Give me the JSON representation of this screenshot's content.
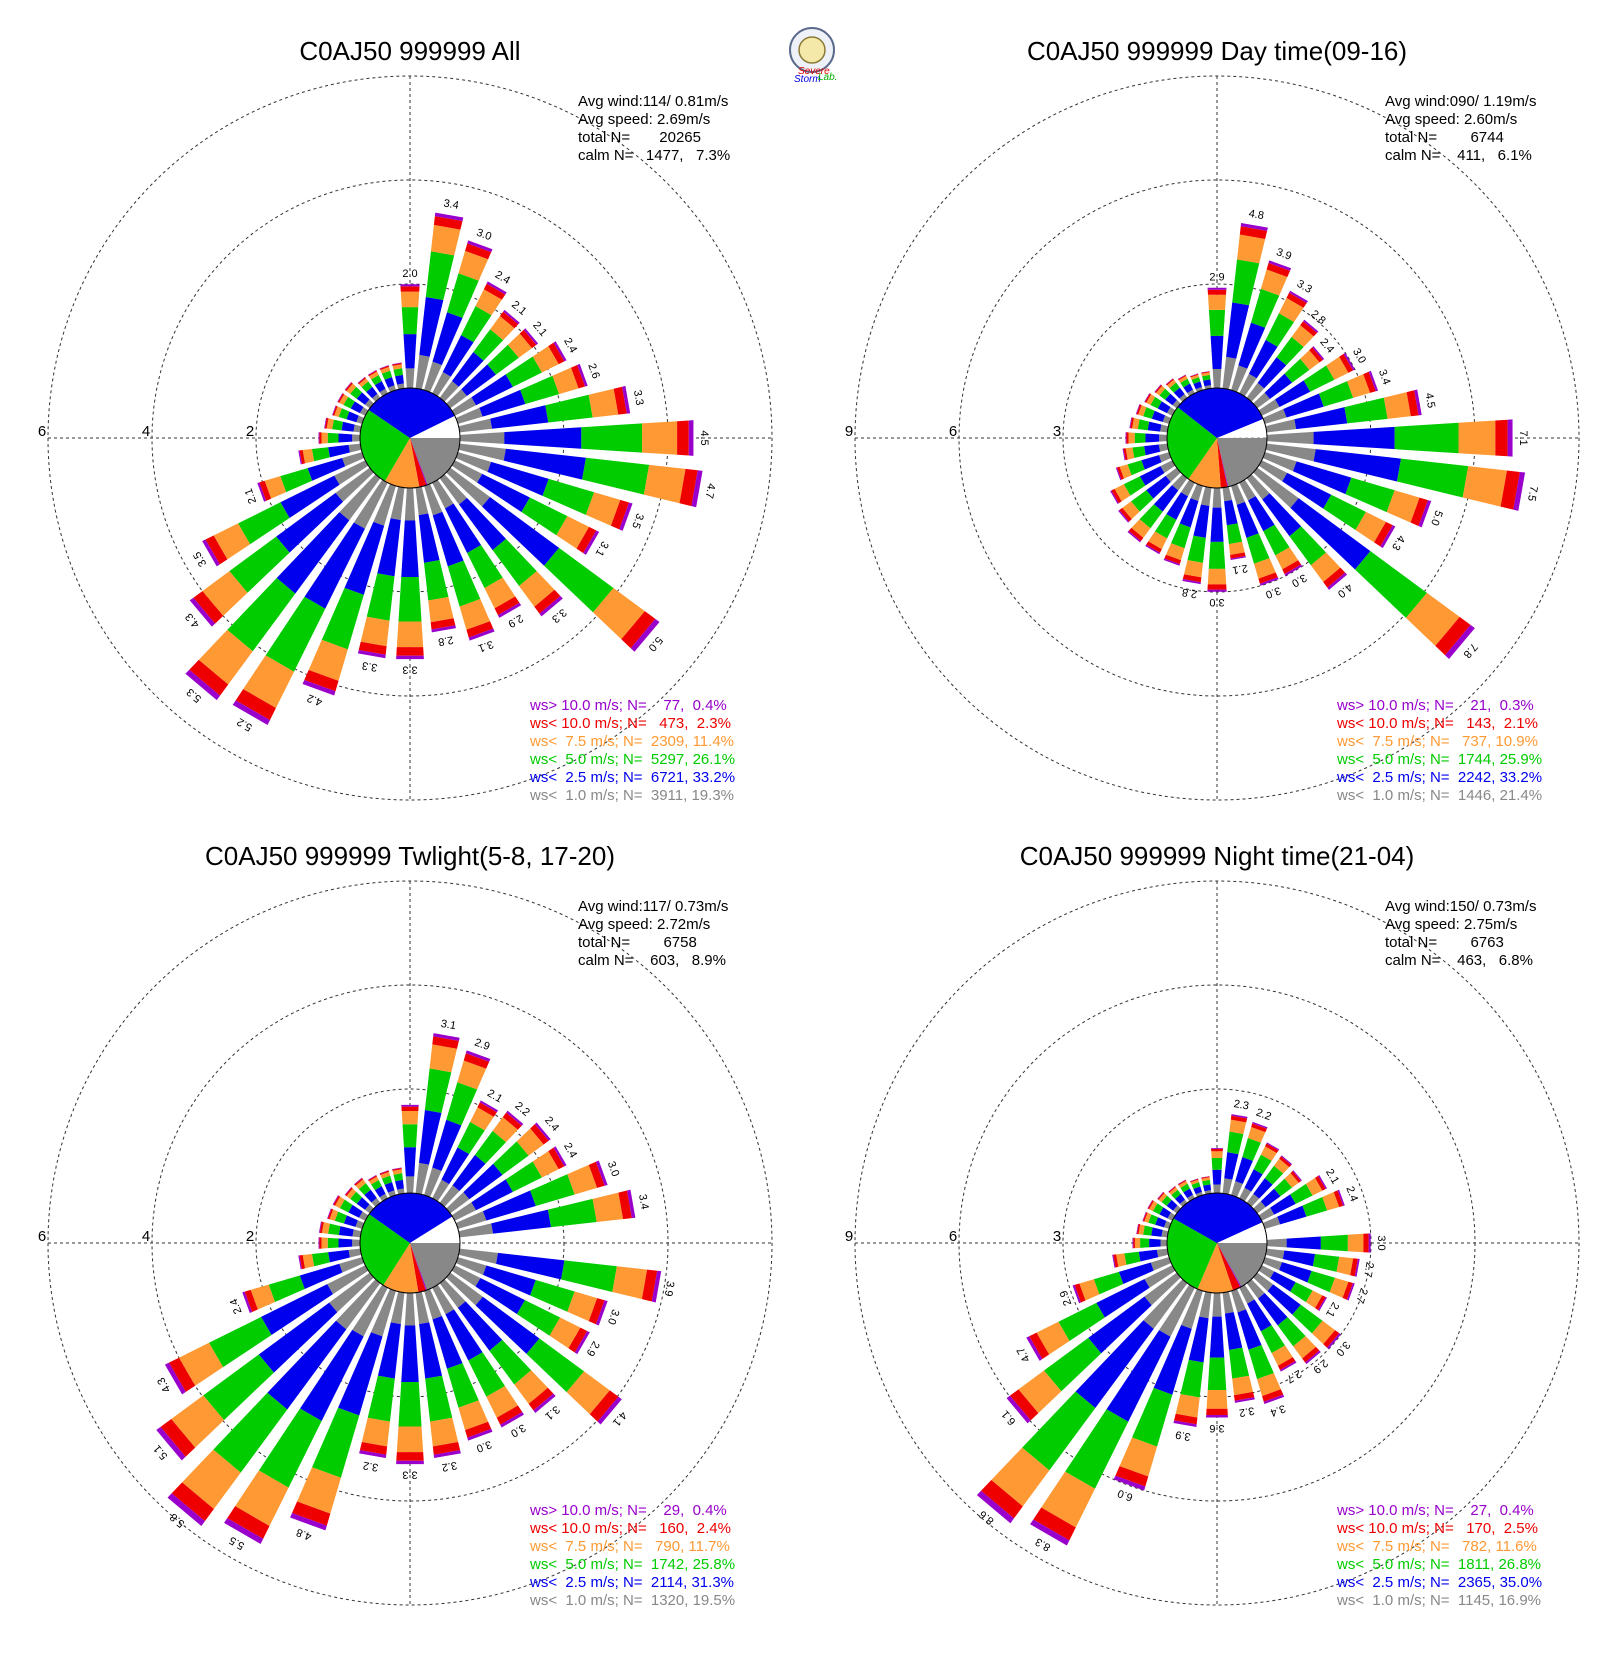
{
  "logo": {
    "words": [
      "Severe",
      "Storm",
      "Lab."
    ],
    "colors": [
      "#e00000",
      "#0000e0",
      "#00b000"
    ]
  },
  "classes": [
    {
      "key": "calm",
      "color": "#888888"
    },
    {
      "key": "c1",
      "color": "#0000ee"
    },
    {
      "key": "c2",
      "color": "#00cc00"
    },
    {
      "key": "c3",
      "color": "#ff9933"
    },
    {
      "key": "c4",
      "color": "#ee0000"
    },
    {
      "key": "c5",
      "color": "#9900cc"
    }
  ],
  "chart_data": [
    {
      "type": "windrose",
      "title": "C0AJ50 999999 All",
      "stats": [
        "Avg wind:114/ 0.81m/s",
        "Avg speed: 2.69m/s",
        "total N=       20265",
        "calm N=   1477,   7.3%"
      ],
      "ring_labels": [
        "2",
        "4",
        "6"
      ],
      "rmax": 6,
      "legend": [
        {
          "text": "ws> 10.0 m/s; N=    77,  0.4%",
          "color": "#9900cc"
        },
        {
          "text": "ws< 10.0 m/s; N=   473,  2.3%",
          "color": "#ee0000"
        },
        {
          "text": "ws<  7.5 m/s; N=  2309, 11.4%",
          "color": "#ff9933"
        },
        {
          "text": "ws<  5.0 m/s; N=  5297, 26.1%",
          "color": "#00cc00"
        },
        {
          "text": "ws<  2.5 m/s; N=  6721, 33.2%",
          "color": "#0000ee"
        },
        {
          "text": "ws<  1.0 m/s; N=  3911, 19.3%",
          "color": "#888888"
        }
      ],
      "pie": [
        {
          "pct": 19.3,
          "color": "#888888"
        },
        {
          "pct": 0.4,
          "color": "#9900cc"
        },
        {
          "pct": 2.3,
          "color": "#ee0000"
        },
        {
          "pct": 11.4,
          "color": "#ff9933"
        },
        {
          "pct": 26.1,
          "color": "#00cc00"
        },
        {
          "pct": 33.2,
          "color": "#0000ee"
        },
        {
          "pct": 7.3,
          "color": "#ffffff"
        }
      ],
      "sectors": [
        {
          "dir": 0,
          "total": 2.0,
          "label": "2.0"
        },
        {
          "dir": 10,
          "total": 3.4,
          "label": "3.4"
        },
        {
          "dir": 20,
          "total": 3.0,
          "label": "3.0"
        },
        {
          "dir": 30,
          "total": 2.4,
          "label": "2.4"
        },
        {
          "dir": 40,
          "total": 2.1,
          "label": "2.1"
        },
        {
          "dir": 50,
          "total": 2.1,
          "label": "2.1"
        },
        {
          "dir": 60,
          "total": 2.4,
          "label": "2.4"
        },
        {
          "dir": 70,
          "total": 2.6,
          "label": "2.6"
        },
        {
          "dir": 80,
          "total": 3.3,
          "label": "3.3"
        },
        {
          "dir": 90,
          "total": 4.5,
          "label": "4.5"
        },
        {
          "dir": 100,
          "total": 4.7,
          "label": "4.7"
        },
        {
          "dir": 110,
          "total": 3.5,
          "label": "3.5"
        },
        {
          "dir": 120,
          "total": 3.1,
          "label": "3.1"
        },
        {
          "dir": 130,
          "total": 5.0,
          "label": "5.0"
        },
        {
          "dir": 140,
          "total": 3.3,
          "label": "3.3"
        },
        {
          "dir": 150,
          "total": 2.9,
          "label": "2.9"
        },
        {
          "dir": 160,
          "total": 3.1,
          "label": "3.1"
        },
        {
          "dir": 170,
          "total": 2.8,
          "label": "2.8"
        },
        {
          "dir": 180,
          "total": 3.3,
          "label": "3.3"
        },
        {
          "dir": 190,
          "total": 3.3,
          "label": "3.3"
        },
        {
          "dir": 200,
          "total": 4.2,
          "label": "4.2"
        },
        {
          "dir": 210,
          "total": 5.2,
          "label": "5.2"
        },
        {
          "dir": 220,
          "total": 5.3,
          "label": "5.3"
        },
        {
          "dir": 230,
          "total": 4.3,
          "label": "4.3"
        },
        {
          "dir": 240,
          "total": 3.5,
          "label": "3.5"
        },
        {
          "dir": 250,
          "total": 2.1,
          "label": "2.1"
        },
        {
          "dir": 260,
          "total": 1.2,
          "label": ""
        },
        {
          "dir": 270,
          "total": 0.8,
          "label": ""
        },
        {
          "dir": 280,
          "total": 0.7,
          "label": ""
        },
        {
          "dir": 290,
          "total": 0.6,
          "label": ""
        },
        {
          "dir": 300,
          "total": 0.6,
          "label": ""
        },
        {
          "dir": 310,
          "total": 0.6,
          "label": ""
        },
        {
          "dir": 320,
          "total": 0.5,
          "label": ""
        },
        {
          "dir": 330,
          "total": 0.5,
          "label": ""
        },
        {
          "dir": 340,
          "total": 0.5,
          "label": ""
        },
        {
          "dir": 350,
          "total": 0.5,
          "label": ""
        }
      ]
    },
    {
      "type": "windrose",
      "title": "C0AJ50 999999 Day time(09-16)",
      "stats": [
        "Avg wind:090/ 1.19m/s",
        "Avg speed: 2.60m/s",
        "total N=        6744",
        "calm N=    411,   6.1%"
      ],
      "ring_labels": [
        "3",
        "6",
        "9"
      ],
      "rmax": 9,
      "legend": [
        {
          "text": "ws> 10.0 m/s; N=    21,  0.3%",
          "color": "#9900cc"
        },
        {
          "text": "ws< 10.0 m/s; N=   143,  2.1%",
          "color": "#ee0000"
        },
        {
          "text": "ws<  7.5 m/s; N=   737, 10.9%",
          "color": "#ff9933"
        },
        {
          "text": "ws<  5.0 m/s; N=  1744, 25.9%",
          "color": "#00cc00"
        },
        {
          "text": "ws<  2.5 m/s; N=  2242, 33.2%",
          "color": "#0000ee"
        },
        {
          "text": "ws<  1.0 m/s; N=  1446, 21.4%",
          "color": "#888888"
        }
      ],
      "pie": [
        {
          "pct": 21.4,
          "color": "#888888"
        },
        {
          "pct": 0.3,
          "color": "#9900cc"
        },
        {
          "pct": 2.1,
          "color": "#ee0000"
        },
        {
          "pct": 10.9,
          "color": "#ff9933"
        },
        {
          "pct": 25.9,
          "color": "#00cc00"
        },
        {
          "pct": 33.2,
          "color": "#0000ee"
        },
        {
          "pct": 6.1,
          "color": "#ffffff"
        }
      ],
      "sectors": [
        {
          "dir": 0,
          "total": 2.9,
          "label": "2.9"
        },
        {
          "dir": 10,
          "total": 4.8,
          "label": "4.8"
        },
        {
          "dir": 20,
          "total": 3.9,
          "label": "3.9"
        },
        {
          "dir": 30,
          "total": 3.3,
          "label": "3.3"
        },
        {
          "dir": 40,
          "total": 2.8,
          "label": "2.8"
        },
        {
          "dir": 50,
          "total": 2.4,
          "label": "2.4"
        },
        {
          "dir": 60,
          "total": 3.0,
          "label": "3.0"
        },
        {
          "dir": 70,
          "total": 3.4,
          "label": "3.4"
        },
        {
          "dir": 80,
          "total": 4.5,
          "label": "4.5"
        },
        {
          "dir": 90,
          "total": 7.1,
          "label": "7.1"
        },
        {
          "dir": 100,
          "total": 7.5,
          "label": "7.5"
        },
        {
          "dir": 110,
          "total": 5.0,
          "label": "5.0"
        },
        {
          "dir": 120,
          "total": 4.3,
          "label": "4.3"
        },
        {
          "dir": 130,
          "total": 7.8,
          "label": "7.8"
        },
        {
          "dir": 140,
          "total": 4.0,
          "label": "4.0"
        },
        {
          "dir": 150,
          "total": 3.0,
          "label": "3.0"
        },
        {
          "dir": 160,
          "total": 3.0,
          "label": "3.0"
        },
        {
          "dir": 170,
          "total": 2.1,
          "label": "2.1"
        },
        {
          "dir": 180,
          "total": 3.0,
          "label": "3.0"
        },
        {
          "dir": 190,
          "total": 2.8,
          "label": "2.8"
        },
        {
          "dir": 200,
          "total": 2.4,
          "label": ""
        },
        {
          "dir": 210,
          "total": 2.3,
          "label": ""
        },
        {
          "dir": 220,
          "total": 2.3,
          "label": ""
        },
        {
          "dir": 230,
          "total": 2.1,
          "label": ""
        },
        {
          "dir": 240,
          "total": 2.0,
          "label": ""
        },
        {
          "dir": 250,
          "total": 1.6,
          "label": ""
        },
        {
          "dir": 260,
          "total": 1.3,
          "label": ""
        },
        {
          "dir": 270,
          "total": 1.2,
          "label": ""
        },
        {
          "dir": 280,
          "total": 1.1,
          "label": ""
        },
        {
          "dir": 290,
          "total": 1.0,
          "label": ""
        },
        {
          "dir": 300,
          "total": 0.9,
          "label": ""
        },
        {
          "dir": 310,
          "total": 0.8,
          "label": ""
        },
        {
          "dir": 320,
          "total": 0.7,
          "label": ""
        },
        {
          "dir": 330,
          "total": 0.6,
          "label": ""
        },
        {
          "dir": 340,
          "total": 0.5,
          "label": ""
        },
        {
          "dir": 350,
          "total": 0.5,
          "label": ""
        }
      ]
    },
    {
      "type": "windrose",
      "title": "C0AJ50 999999 Twlight(5-8, 17-20)",
      "stats": [
        "Avg wind:117/ 0.73m/s",
        "Avg speed: 2.72m/s",
        "total N=        6758",
        "calm N=    603,   8.9%"
      ],
      "ring_labels": [
        "2",
        "4",
        "6"
      ],
      "rmax": 6,
      "legend": [
        {
          "text": "ws> 10.0 m/s; N=    29,  0.4%",
          "color": "#9900cc"
        },
        {
          "text": "ws< 10.0 m/s; N=   160,  2.4%",
          "color": "#ee0000"
        },
        {
          "text": "ws<  7.5 m/s; N=   790, 11.7%",
          "color": "#ff9933"
        },
        {
          "text": "ws<  5.0 m/s; N=  1742, 25.8%",
          "color": "#00cc00"
        },
        {
          "text": "ws<  2.5 m/s; N=  2114, 31.3%",
          "color": "#0000ee"
        },
        {
          "text": "ws<  1.0 m/s; N=  1320, 19.5%",
          "color": "#888888"
        }
      ],
      "pie": [
        {
          "pct": 19.5,
          "color": "#888888"
        },
        {
          "pct": 0.4,
          "color": "#9900cc"
        },
        {
          "pct": 2.4,
          "color": "#ee0000"
        },
        {
          "pct": 11.7,
          "color": "#ff9933"
        },
        {
          "pct": 25.8,
          "color": "#00cc00"
        },
        {
          "pct": 31.3,
          "color": "#0000ee"
        },
        {
          "pct": 8.9,
          "color": "#ffffff"
        }
      ],
      "sectors": [
        {
          "dir": 0,
          "total": 1.7,
          "label": ""
        },
        {
          "dir": 10,
          "total": 3.1,
          "label": "3.1"
        },
        {
          "dir": 20,
          "total": 2.9,
          "label": "2.9"
        },
        {
          "dir": 30,
          "total": 2.1,
          "label": "2.1"
        },
        {
          "dir": 40,
          "total": 2.2,
          "label": "2.2"
        },
        {
          "dir": 50,
          "total": 2.4,
          "label": "2.4"
        },
        {
          "dir": 60,
          "total": 2.4,
          "label": "2.4"
        },
        {
          "dir": 70,
          "total": 3.0,
          "label": "3.0"
        },
        {
          "dir": 80,
          "total": 3.4,
          "label": "3.4"
        },
        {
          "dir": 100,
          "total": 3.9,
          "label": "3.9"
        },
        {
          "dir": 110,
          "total": 3.0,
          "label": "3.0"
        },
        {
          "dir": 120,
          "total": 2.9,
          "label": "2.9"
        },
        {
          "dir": 130,
          "total": 4.1,
          "label": "4.1"
        },
        {
          "dir": 140,
          "total": 3.1,
          "label": "3.1"
        },
        {
          "dir": 150,
          "total": 3.0,
          "label": "3.0"
        },
        {
          "dir": 160,
          "total": 3.0,
          "label": "3.0"
        },
        {
          "dir": 170,
          "total": 3.2,
          "label": "3.2"
        },
        {
          "dir": 180,
          "total": 3.3,
          "label": "3.3"
        },
        {
          "dir": 190,
          "total": 3.2,
          "label": "3.2"
        },
        {
          "dir": 200,
          "total": 4.8,
          "label": "4.8"
        },
        {
          "dir": 210,
          "total": 5.5,
          "label": "5.5"
        },
        {
          "dir": 220,
          "total": 5.8,
          "label": "5.8"
        },
        {
          "dir": 230,
          "total": 5.1,
          "label": "5.1"
        },
        {
          "dir": 240,
          "total": 4.3,
          "label": "4.3"
        },
        {
          "dir": 250,
          "total": 2.4,
          "label": "2.4"
        },
        {
          "dir": 260,
          "total": 1.2,
          "label": ""
        },
        {
          "dir": 270,
          "total": 0.8,
          "label": ""
        },
        {
          "dir": 280,
          "total": 0.8,
          "label": ""
        },
        {
          "dir": 290,
          "total": 0.7,
          "label": ""
        },
        {
          "dir": 300,
          "total": 0.7,
          "label": ""
        },
        {
          "dir": 310,
          "total": 0.6,
          "label": ""
        },
        {
          "dir": 320,
          "total": 0.6,
          "label": ""
        },
        {
          "dir": 330,
          "total": 0.5,
          "label": ""
        },
        {
          "dir": 340,
          "total": 0.5,
          "label": ""
        },
        {
          "dir": 350,
          "total": 0.5,
          "label": ""
        }
      ]
    },
    {
      "type": "windrose",
      "title": "C0AJ50 999999 Night time(21-04)",
      "stats": [
        "Avg wind:150/ 0.73m/s",
        "Avg speed: 2.75m/s",
        "total N=        6763",
        "calm N=    463,   6.8%"
      ],
      "ring_labels": [
        "3",
        "6",
        "9"
      ],
      "rmax": 9,
      "legend": [
        {
          "text": "ws> 10.0 m/s; N=    27,  0.4%",
          "color": "#9900cc"
        },
        {
          "text": "ws< 10.0 m/s; N=   170,  2.5%",
          "color": "#ee0000"
        },
        {
          "text": "ws<  7.5 m/s; N=   782, 11.6%",
          "color": "#ff9933"
        },
        {
          "text": "ws<  5.0 m/s; N=  1811, 26.8%",
          "color": "#00cc00"
        },
        {
          "text": "ws<  2.5 m/s; N=  2365, 35.0%",
          "color": "#0000ee"
        },
        {
          "text": "ws<  1.0 m/s; N=  1145, 16.9%",
          "color": "#888888"
        }
      ],
      "pie": [
        {
          "pct": 16.9,
          "color": "#888888"
        },
        {
          "pct": 0.4,
          "color": "#9900cc"
        },
        {
          "pct": 2.5,
          "color": "#ee0000"
        },
        {
          "pct": 11.6,
          "color": "#ff9933"
        },
        {
          "pct": 26.8,
          "color": "#00cc00"
        },
        {
          "pct": 35.0,
          "color": "#0000ee"
        },
        {
          "pct": 6.8,
          "color": "#ffffff"
        }
      ],
      "sectors": [
        {
          "dir": 0,
          "total": 1.3,
          "label": ""
        },
        {
          "dir": 10,
          "total": 2.3,
          "label": "2.3"
        },
        {
          "dir": 20,
          "total": 2.2,
          "label": "2.2"
        },
        {
          "dir": 30,
          "total": 1.8,
          "label": ""
        },
        {
          "dir": 40,
          "total": 1.7,
          "label": ""
        },
        {
          "dir": 50,
          "total": 1.6,
          "label": ""
        },
        {
          "dir": 60,
          "total": 2.1,
          "label": "2.1"
        },
        {
          "dir": 70,
          "total": 2.4,
          "label": "2.4"
        },
        {
          "dir": 90,
          "total": 3.0,
          "label": "3.0"
        },
        {
          "dir": 100,
          "total": 2.7,
          "label": "2.7"
        },
        {
          "dir": 110,
          "total": 2.7,
          "label": "2.7"
        },
        {
          "dir": 120,
          "total": 2.1,
          "label": "2.1"
        },
        {
          "dir": 130,
          "total": 3.0,
          "label": "3.0"
        },
        {
          "dir": 140,
          "total": 2.9,
          "label": "2.9"
        },
        {
          "dir": 150,
          "total": 2.7,
          "label": "2.7"
        },
        {
          "dir": 160,
          "total": 3.4,
          "label": "3.4"
        },
        {
          "dir": 170,
          "total": 3.2,
          "label": "3.2"
        },
        {
          "dir": 180,
          "total": 3.6,
          "label": "3.6"
        },
        {
          "dir": 190,
          "total": 3.9,
          "label": "3.9"
        },
        {
          "dir": 200,
          "total": 6.0,
          "label": "6.0"
        },
        {
          "dir": 210,
          "total": 8.3,
          "label": "8.3"
        },
        {
          "dir": 220,
          "total": 8.6,
          "label": "8.6"
        },
        {
          "dir": 230,
          "total": 6.1,
          "label": "6.1"
        },
        {
          "dir": 240,
          "total": 4.7,
          "label": "4.7"
        },
        {
          "dir": 250,
          "total": 2.9,
          "label": "2.9"
        },
        {
          "dir": 260,
          "total": 1.6,
          "label": ""
        },
        {
          "dir": 270,
          "total": 1.0,
          "label": ""
        },
        {
          "dir": 280,
          "total": 0.9,
          "label": ""
        },
        {
          "dir": 290,
          "total": 0.8,
          "label": ""
        },
        {
          "dir": 300,
          "total": 0.8,
          "label": ""
        },
        {
          "dir": 310,
          "total": 0.7,
          "label": ""
        },
        {
          "dir": 320,
          "total": 0.6,
          "label": ""
        },
        {
          "dir": 330,
          "total": 0.6,
          "label": ""
        },
        {
          "dir": 340,
          "total": 0.5,
          "label": ""
        },
        {
          "dir": 350,
          "total": 0.5,
          "label": ""
        }
      ]
    }
  ]
}
